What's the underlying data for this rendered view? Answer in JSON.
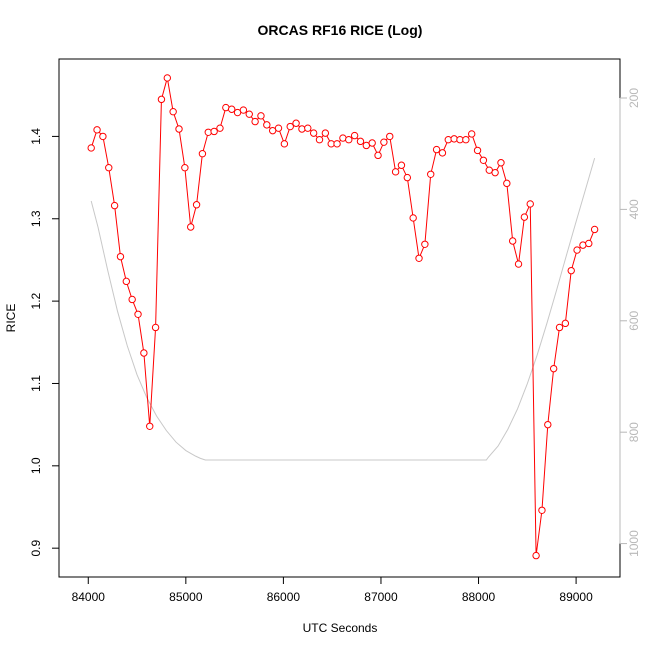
{
  "chart_data": {
    "type": "line",
    "title": "ORCAS RF16 RICE (Log)",
    "xlabel": "UTC Seconds",
    "ylabel": "RICE",
    "xlim": [
      83700,
      89450
    ],
    "ylim": [
      0.865,
      1.494
    ],
    "y2lim": [
      1060,
      130
    ],
    "y2_reversed": true,
    "x_ticks": [
      84000,
      85000,
      86000,
      87000,
      88000,
      89000
    ],
    "x_tick_labels": [
      "84000",
      "85000",
      "86000",
      "87000",
      "88000",
      "89000"
    ],
    "y_ticks": [
      0.9,
      1.0,
      1.1,
      1.2,
      1.3,
      1.4
    ],
    "y_tick_labels": [
      "0.9",
      "1.0",
      "1.1",
      "1.2",
      "1.3",
      "1.4"
    ],
    "y2_ticks": [
      200,
      400,
      600,
      800,
      1000
    ],
    "y2_tick_labels": [
      "200",
      "400",
      "600",
      "800",
      "1000"
    ],
    "grid": false,
    "series": [
      {
        "color": "#ff0000",
        "marker": "open-circle",
        "axis": "left",
        "x": [
          84030,
          84090,
          84150,
          84210,
          84270,
          84330,
          84390,
          84450,
          84510,
          84570,
          84630,
          84690,
          84750,
          84810,
          84870,
          84930,
          84990,
          85050,
          85110,
          85170,
          85230,
          85290,
          85350,
          85410,
          85470,
          85530,
          85590,
          85650,
          85710,
          85770,
          85830,
          85890,
          85950,
          86010,
          86070,
          86130,
          86190,
          86250,
          86310,
          86370,
          86430,
          86490,
          86550,
          86610,
          86670,
          86730,
          86790,
          86850,
          86910,
          86970,
          87030,
          87090,
          87150,
          87210,
          87270,
          87330,
          87390,
          87450,
          87510,
          87570,
          87630,
          87690,
          87750,
          87810,
          87870,
          87930,
          87990,
          88050,
          88110,
          88170,
          88230,
          88290,
          88350,
          88410,
          88470,
          88530,
          88590,
          88650,
          88710,
          88770,
          88830,
          88890,
          88950,
          89010,
          89070,
          89130,
          89190
        ],
        "values": [
          1.386,
          1.408,
          1.4,
          1.362,
          1.316,
          1.254,
          1.224,
          1.202,
          1.184,
          1.137,
          1.048,
          1.168,
          1.445,
          1.471,
          1.43,
          1.409,
          1.362,
          1.29,
          1.317,
          1.379,
          1.405,
          1.406,
          1.41,
          1.435,
          1.433,
          1.429,
          1.432,
          1.427,
          1.418,
          1.425,
          1.414,
          1.407,
          1.41,
          1.391,
          1.412,
          1.416,
          1.409,
          1.41,
          1.404,
          1.396,
          1.404,
          1.391,
          1.391,
          1.398,
          1.396,
          1.401,
          1.394,
          1.389,
          1.392,
          1.377,
          1.393,
          1.4,
          1.357,
          1.365,
          1.35,
          1.301,
          1.252,
          1.269,
          1.354,
          1.384,
          1.38,
          1.396,
          1.397,
          1.396,
          1.396,
          1.403,
          1.383,
          1.371,
          1.359,
          1.356,
          1.368,
          1.343,
          1.273,
          1.245,
          1.302,
          1.318,
          0.891,
          0.946,
          1.05,
          1.118,
          1.168,
          1.173,
          1.237,
          1.262,
          1.268,
          1.27,
          1.287
        ]
      },
      {
        "color": "#c8c8c8",
        "marker": "none",
        "axis": "right",
        "x": [
          84030,
          84100,
          84200,
          84300,
          84400,
          84500,
          84600,
          84700,
          84800,
          84900,
          85000,
          85100,
          85150,
          85200,
          85400,
          85700,
          86000,
          86500,
          87000,
          87500,
          88000,
          88080,
          88100,
          88200,
          88300,
          88400,
          88500,
          88600,
          88700,
          88800,
          88900,
          89000,
          89100,
          89190
        ],
        "values": [
          385,
          432,
          510,
          583,
          645,
          697,
          738,
          771,
          797,
          818,
          833,
          843,
          847,
          850,
          850,
          850,
          850,
          850,
          850,
          850,
          850,
          850,
          845,
          825,
          795,
          758,
          713,
          662,
          605,
          545,
          483,
          422,
          362,
          308
        ]
      }
    ]
  }
}
